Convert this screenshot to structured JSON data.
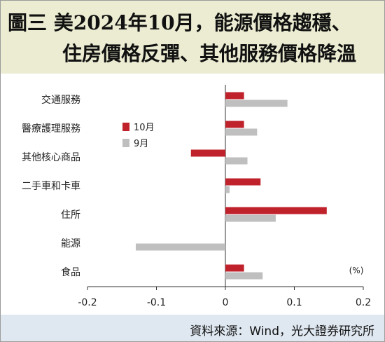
{
  "title": {
    "line1": "圖三  美2024年10月，能源價格趨穩、",
    "line2": "住房價格反彈、其他服務價格降溫"
  },
  "source": "資料來源：Wind，光大證券研究所",
  "chart_data": {
    "type": "bar",
    "orientation": "horizontal",
    "categories": [
      "交通服務",
      "醫療護理服務",
      "其他核心商品",
      "二手車和卡車",
      "住所",
      "能源",
      "食品"
    ],
    "series": [
      {
        "name": "10月",
        "color": "#c0222c",
        "values": [
          0.027,
          0.027,
          -0.05,
          0.051,
          0.147,
          0.0,
          0.027
        ]
      },
      {
        "name": "9月",
        "color": "#bfbfbf",
        "values": [
          0.09,
          0.046,
          0.032,
          0.006,
          0.073,
          -0.13,
          0.054
        ]
      }
    ],
    "xlim": [
      -0.2,
      0.2
    ],
    "xticks": [
      "-0.2",
      "-0.1",
      "0",
      "0.1",
      "0.2"
    ],
    "xtick_values": [
      -0.2,
      -0.1,
      0,
      0.1,
      0.2
    ],
    "unit": "(%)",
    "legend_position": "upper-left"
  }
}
